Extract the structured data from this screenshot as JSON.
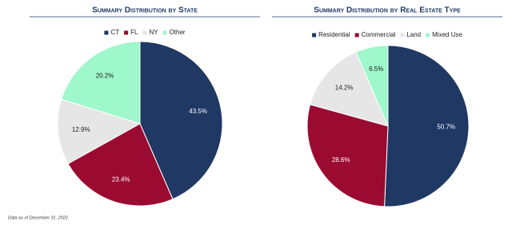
{
  "chart_data": [
    {
      "type": "pie",
      "title": "Summary Distribution by State",
      "categories": [
        "CT",
        "FL",
        "NY",
        "Other"
      ],
      "values": [
        43.5,
        23.4,
        12.9,
        20.2
      ],
      "value_labels": [
        "43.5%",
        "23.4%",
        "12.9%",
        "20.2%"
      ],
      "colors": [
        "#1f3864",
        "#9b0a30",
        "#e6e6e6",
        "#9ff7cc"
      ]
    },
    {
      "type": "pie",
      "title": "Summary Distribution by Real Estate Type",
      "categories": [
        "Residential",
        "Commercial",
        "Land",
        "Mixed Use"
      ],
      "values": [
        50.7,
        28.6,
        14.2,
        6.5
      ],
      "value_labels": [
        "50.7%",
        "28.6%",
        "14.2%",
        "6.5%"
      ],
      "colors": [
        "#1f3864",
        "#9b0a30",
        "#e6e6e6",
        "#9ff7cc"
      ]
    }
  ],
  "footnote": "Data as of December 31, 2022"
}
